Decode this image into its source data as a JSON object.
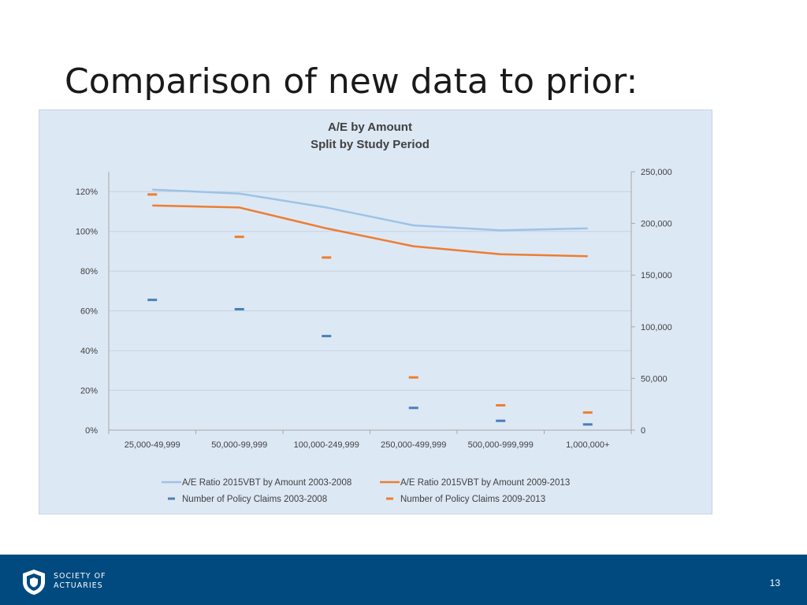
{
  "slide": {
    "title": "Comparison of new data to prior:",
    "page_number": "13",
    "logo_text": [
      "SOCIETY OF",
      "ACTUARIES"
    ]
  },
  "chart_data": {
    "type": "line",
    "title": "A/E by Amount",
    "subtitle": "Split by Study Period",
    "categories": [
      "25,000-49,999",
      "50,000-99,999",
      "100,000-249,999",
      "250,000-499,999",
      "500,000-999,999",
      "1,000,000+"
    ],
    "left_axis": {
      "ticks": [
        "0%",
        "20%",
        "40%",
        "60%",
        "80%",
        "100%",
        "120%"
      ],
      "range": [
        0,
        130
      ],
      "unit": "percent"
    },
    "right_axis": {
      "ticks": [
        "0",
        "50,000",
        "100,000",
        "150,000",
        "200,000",
        "250,000"
      ],
      "range": [
        0,
        250000
      ]
    },
    "grid": true,
    "legend_position": "bottom",
    "series": [
      {
        "name": "A/E Ratio 2015VBT by Amount  2003-2008",
        "kind": "line",
        "axis": "left",
        "color": "#9dc3e6",
        "values": [
          121,
          119,
          112,
          103,
          100.5,
          101.5
        ]
      },
      {
        "name": "A/E Ratio 2015VBT by Amount  2009-2013",
        "kind": "line",
        "axis": "left",
        "color": "#ed7d31",
        "values": [
          113,
          112,
          101.5,
          92.5,
          88.5,
          87.5
        ]
      },
      {
        "name": "Number of Policy Claims 2003-2008",
        "kind": "marker",
        "axis": "right",
        "color": "#4a7ebb",
        "values": [
          126000,
          117000,
          91000,
          21500,
          9000,
          5500
        ]
      },
      {
        "name": "Number of Policy Claims 2009-2013",
        "kind": "marker",
        "axis": "right",
        "color": "#ed7d31",
        "values": [
          228000,
          187000,
          167000,
          51000,
          24000,
          17000
        ]
      }
    ]
  }
}
